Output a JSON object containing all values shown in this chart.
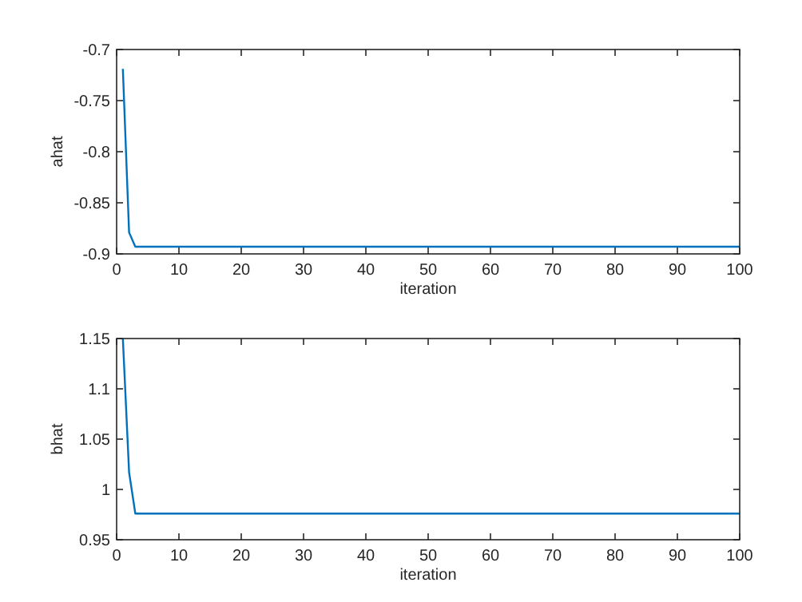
{
  "chart_data": [
    {
      "type": "line",
      "xlabel": "iteration",
      "ylabel": "ahat",
      "xlim": [
        0,
        100
      ],
      "xticks": [
        0,
        10,
        20,
        30,
        40,
        50,
        60,
        70,
        80,
        90,
        100
      ],
      "ylim": [
        -0.9,
        -0.7
      ],
      "yticks": [
        -0.9,
        -0.85,
        -0.8,
        -0.75,
        -0.7
      ],
      "grid": false,
      "series": [
        {
          "color": "#0072bd",
          "x": [
            1,
            2,
            3,
            100
          ],
          "values": [
            -0.719,
            -0.879,
            -0.893,
            -0.893
          ]
        }
      ]
    },
    {
      "type": "line",
      "xlabel": "iteration",
      "ylabel": "bhat",
      "xlim": [
        0,
        100
      ],
      "xticks": [
        0,
        10,
        20,
        30,
        40,
        50,
        60,
        70,
        80,
        90,
        100
      ],
      "ylim": [
        0.95,
        1.15
      ],
      "yticks": [
        0.95,
        1,
        1.05,
        1.1,
        1.15
      ],
      "grid": false,
      "series": [
        {
          "color": "#0072bd",
          "x": [
            1,
            2,
            3,
            100
          ],
          "values": [
            1.15,
            1.017,
            0.976,
            0.976
          ]
        }
      ]
    }
  ]
}
